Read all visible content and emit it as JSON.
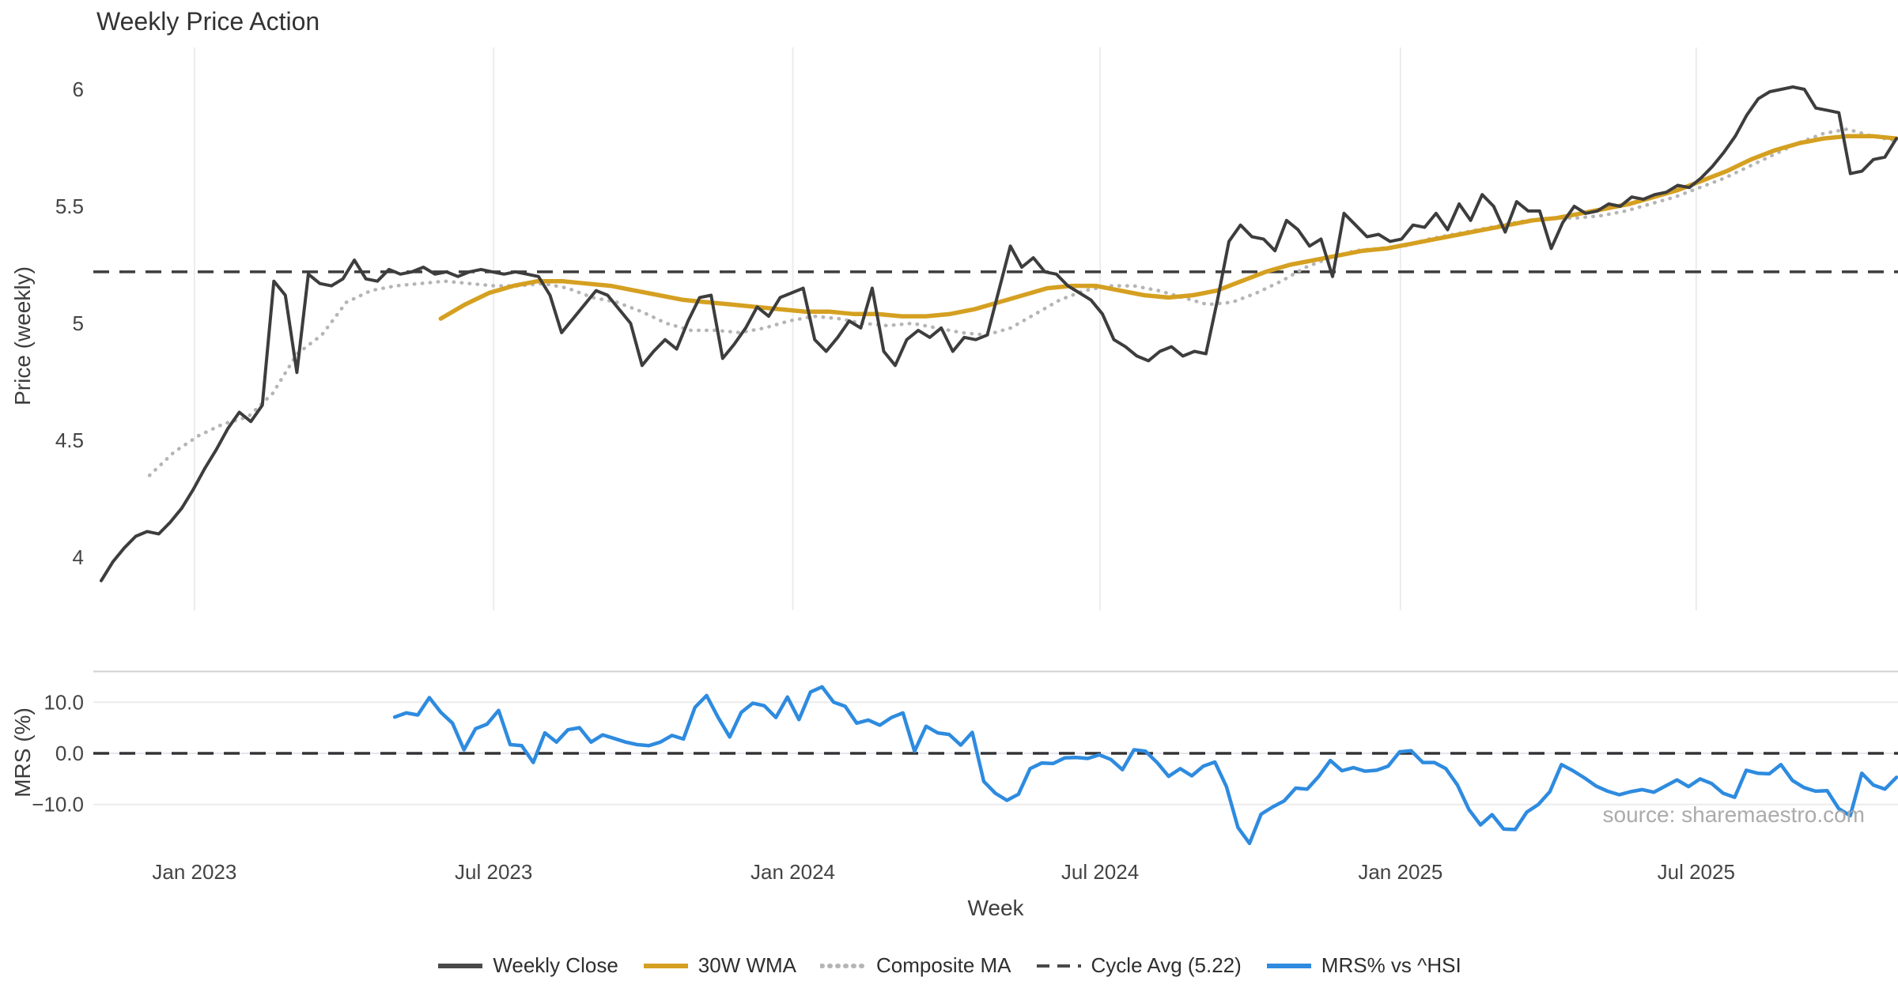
{
  "title": "Weekly Price Action",
  "source_note": "source: sharemaestro.com",
  "axes": {
    "price_label": "Price (weekly)",
    "mrs_label": "MRS (%)",
    "x_label": "Week"
  },
  "legend": {
    "items": [
      {
        "label": "Weekly Close",
        "color": "#4a4a4a",
        "style": "solid"
      },
      {
        "label": "30W WMA",
        "color": "#d5a021",
        "style": "solid"
      },
      {
        "label": "Composite MA",
        "color": "#b5b5b5",
        "style": "dotted"
      },
      {
        "label": "Cycle Avg (5.22)",
        "color": "#4a4a4a",
        "style": "dashed"
      },
      {
        "label": "MRS% vs ^HSI",
        "color": "#2e8bdf",
        "style": "solid"
      }
    ]
  },
  "chart_data": {
    "type": "line",
    "title": "Weekly Price Action",
    "xlabel": "Week",
    "x_axis": {
      "unit": "weeks",
      "total_weeks": 156,
      "ticks": [
        {
          "label": "Jan 2023",
          "week": 8.1
        },
        {
          "label": "Jul 2023",
          "week": 34.1
        },
        {
          "label": "Jan 2024",
          "week": 60.1
        },
        {
          "label": "Jul 2024",
          "week": 86.8
        },
        {
          "label": "Jan 2025",
          "week": 112.9
        },
        {
          "label": "Jul 2025",
          "week": 138.6
        }
      ]
    },
    "panels": [
      {
        "id": "price",
        "ylabel": "Price (weekly)",
        "ylim": [
          3.72,
          6.2
        ],
        "yticks": [
          {
            "label": "4",
            "value": 4
          },
          {
            "label": "4.5",
            "value": 4.5
          },
          {
            "label": "5",
            "value": 5
          },
          {
            "label": "5.5",
            "value": 5.5
          },
          {
            "label": "6",
            "value": 6
          }
        ],
        "series": [
          {
            "name": "Cycle Avg (5.22)",
            "color": "#3d3d3d",
            "style": "dashed",
            "width": 3.5,
            "constant": 5.22
          },
          {
            "name": "Composite MA",
            "color": "#b5b5b5",
            "style": "dotted",
            "width": 4.5,
            "start_week": 4.2,
            "values": [
              4.35,
              4.45,
              4.52,
              4.57,
              4.6,
              4.7,
              4.87,
              4.95,
              5.09,
              5.14,
              5.16,
              5.17,
              5.18,
              5.17,
              5.16,
              5.16,
              5.17,
              5.15,
              5.11,
              5.09,
              5.05,
              5.0,
              4.97,
              4.97,
              4.96,
              4.98,
              5.01,
              5.03,
              5.02,
              5.0,
              4.99,
              5.0,
              4.98,
              4.96,
              4.95,
              4.98,
              5.04,
              5.1,
              5.14,
              5.16,
              5.16,
              5.14,
              5.11,
              5.08,
              5.09,
              5.13,
              5.18,
              5.24,
              5.28,
              5.31,
              5.32,
              5.33,
              5.36,
              5.38,
              5.4,
              5.42,
              5.44,
              5.45,
              5.45,
              5.46,
              5.48,
              5.51,
              5.54,
              5.58,
              5.62,
              5.67,
              5.72,
              5.77,
              5.81,
              5.83,
              5.8,
              5.78
            ]
          },
          {
            "name": "30W WMA",
            "color": "#d5a021",
            "style": "solid",
            "width": 5.5,
            "start_week": 29.5,
            "values": [
              5.02,
              5.08,
              5.13,
              5.16,
              5.18,
              5.18,
              5.17,
              5.16,
              5.14,
              5.12,
              5.1,
              5.09,
              5.08,
              5.07,
              5.06,
              5.05,
              5.05,
              5.04,
              5.04,
              5.03,
              5.03,
              5.04,
              5.06,
              5.09,
              5.12,
              5.15,
              5.16,
              5.16,
              5.14,
              5.12,
              5.11,
              5.12,
              5.14,
              5.18,
              5.22,
              5.25,
              5.27,
              5.29,
              5.31,
              5.32,
              5.34,
              5.36,
              5.38,
              5.4,
              5.42,
              5.44,
              5.45,
              5.47,
              5.49,
              5.51,
              5.54,
              5.57,
              5.61,
              5.65,
              5.7,
              5.74,
              5.77,
              5.79,
              5.8,
              5.8,
              5.79
            ]
          },
          {
            "name": "Weekly Close",
            "color": "#3d3d3d",
            "style": "solid",
            "width": 4,
            "start_week": 0,
            "values": [
              3.9,
              3.98,
              4.04,
              4.09,
              4.11,
              4.1,
              4.15,
              4.21,
              4.29,
              4.38,
              4.46,
              4.55,
              4.62,
              4.58,
              4.65,
              5.18,
              5.12,
              4.79,
              5.21,
              5.17,
              5.16,
              5.19,
              5.27,
              5.19,
              5.18,
              5.23,
              5.21,
              5.22,
              5.24,
              5.21,
              5.22,
              5.2,
              5.22,
              5.23,
              5.22,
              5.21,
              5.22,
              5.21,
              5.2,
              5.12,
              4.96,
              5.02,
              5.08,
              5.14,
              5.12,
              5.06,
              5.0,
              4.82,
              4.88,
              4.93,
              4.89,
              5.01,
              5.11,
              5.12,
              4.85,
              4.91,
              4.98,
              5.07,
              5.03,
              5.11,
              5.13,
              5.15,
              4.93,
              4.88,
              4.94,
              5.01,
              4.98,
              5.15,
              4.88,
              4.82,
              4.93,
              4.97,
              4.94,
              4.98,
              4.88,
              4.94,
              4.93,
              4.95,
              5.14,
              5.33,
              5.24,
              5.28,
              5.22,
              5.21,
              5.16,
              5.13,
              5.1,
              5.04,
              4.93,
              4.9,
              4.86,
              4.84,
              4.88,
              4.9,
              4.86,
              4.88,
              4.87,
              5.1,
              5.35,
              5.42,
              5.37,
              5.36,
              5.31,
              5.44,
              5.4,
              5.33,
              5.36,
              5.2,
              5.47,
              5.42,
              5.37,
              5.38,
              5.35,
              5.36,
              5.42,
              5.41,
              5.47,
              5.4,
              5.51,
              5.44,
              5.55,
              5.5,
              5.39,
              5.52,
              5.48,
              5.48,
              5.32,
              5.43,
              5.5,
              5.47,
              5.48,
              5.51,
              5.5,
              5.54,
              5.53,
              5.55,
              5.56,
              5.59,
              5.58,
              5.62,
              5.67,
              5.73,
              5.8,
              5.89,
              5.96,
              5.99,
              6.0,
              6.01,
              6.0,
              5.92,
              5.91,
              5.9,
              5.64,
              5.65,
              5.7,
              5.71,
              5.79
            ]
          }
        ]
      },
      {
        "id": "mrs",
        "ylabel": "MRS (%)",
        "ylim": [
          -20.5,
          16
        ],
        "yticks": [
          {
            "label": "−10.0",
            "value": -10
          },
          {
            "label": "0.0",
            "value": 0
          },
          {
            "label": "10.0",
            "value": 10
          }
        ],
        "series": [
          {
            "name": "Zero line",
            "color": "#333333",
            "style": "dashed",
            "width": 3.5,
            "constant": 0
          },
          {
            "name": "MRS% vs ^HSI",
            "color": "#2e8bdf",
            "style": "solid",
            "width": 4.5,
            "start_week": 25.5,
            "values": [
              7.1,
              7.9,
              7.5,
              10.9,
              8.0,
              5.9,
              0.7,
              4.8,
              5.7,
              8.4,
              1.7,
              1.5,
              -1.8,
              4.0,
              2.2,
              4.6,
              5.0,
              2.2,
              3.6,
              2.9,
              2.2,
              1.7,
              1.5,
              2.2,
              3.5,
              2.8,
              9.0,
              11.3,
              7.0,
              3.2,
              8.0,
              9.8,
              9.3,
              7.0,
              11.0,
              6.6,
              12.0,
              13.0,
              10.0,
              9.2,
              5.9,
              6.5,
              5.5,
              7.0,
              7.9,
              0.4,
              5.3,
              4.0,
              3.7,
              1.6,
              4.1,
              -5.5,
              -7.8,
              -9.2,
              -8.0,
              -3.0,
              -1.9,
              -2.0,
              -0.9,
              -0.8,
              -1.0,
              -0.3,
              -1.2,
              -3.2,
              0.7,
              0.4,
              -1.8,
              -4.5,
              -3.0,
              -4.4,
              -2.5,
              -1.7,
              -6.5,
              -14.5,
              -17.6,
              -11.9,
              -10.5,
              -9.3,
              -6.8,
              -7.0,
              -4.5,
              -1.4,
              -3.4,
              -2.8,
              -3.5,
              -3.3,
              -2.5,
              0.3,
              0.5,
              -1.8,
              -1.8,
              -3.0,
              -6.2,
              -11.0,
              -14.0,
              -12.0,
              -14.8,
              -14.9,
              -11.5,
              -10.0,
              -7.5,
              -2.2,
              -3.4,
              -4.8,
              -6.4,
              -7.4,
              -8.1,
              -7.5,
              -7.1,
              -7.6,
              -6.4,
              -5.2,
              -6.5,
              -5.0,
              -5.9,
              -7.8,
              -8.6,
              -3.3,
              -3.9,
              -4.0,
              -2.2,
              -5.3,
              -6.7,
              -7.4,
              -7.3,
              -10.8,
              -12.2,
              -3.9,
              -6.2,
              -7.0,
              -4.7
            ]
          }
        ]
      }
    ]
  }
}
